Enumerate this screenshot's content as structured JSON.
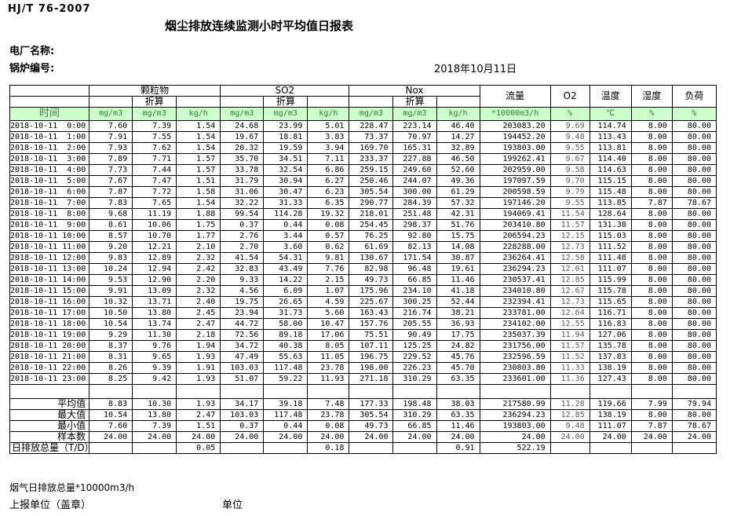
{
  "colors": {
    "header_green_bg": "#ccffcc",
    "header_green_text": "#2f7d32",
    "border": "#000000",
    "background": "#ffffff"
  },
  "page": {
    "standard": "HJ/T 76-2007",
    "title": "烟尘排放连续监测小时平均值日报表",
    "plant_label": "电厂名称:",
    "boiler_label": "锅炉编号:",
    "date": "2018年10月11日"
  },
  "table": {
    "time_header": "时间",
    "groups": [
      "颗粒物",
      "SO2",
      "Nox"
    ],
    "subheader": "折算",
    "single_headers": [
      "流量",
      "O2",
      "温度",
      "湿度",
      "负荷"
    ],
    "units": [
      "mg/m3",
      "mg/m3",
      "kg/h",
      "mg/m3",
      "mg/m3",
      "kg/h",
      "mg/m3",
      "mg/m3",
      "kg/h",
      "*10000m3/h",
      "%",
      "℃",
      "%",
      "%"
    ],
    "rows": [
      {
        "time": "2018-10-11  0:00",
        "values": [
          "7.60",
          "7.39",
          "1.54",
          "24.68",
          "23.99",
          "5.01",
          "228.47",
          "223.14",
          "46.40",
          "203083.20",
          "9.69",
          "114.74",
          "8.00",
          "80.00"
        ]
      },
      {
        "time": "2018-10-11  1:00",
        "values": [
          "7.91",
          "7.55",
          "1.54",
          "19.67",
          "18.81",
          "3.83",
          "73.37",
          "70.97",
          "14.27",
          "194452.20",
          "9.48",
          "113.43",
          "8.00",
          "80.00"
        ]
      },
      {
        "time": "2018-10-11  2:00",
        "values": [
          "7.93",
          "7.62",
          "1.54",
          "20.32",
          "19.59",
          "3.94",
          "169.70",
          "165.31",
          "32.89",
          "193803.00",
          "9.55",
          "113.81",
          "8.00",
          "80.00"
        ]
      },
      {
        "time": "2018-10-11  3:00",
        "values": [
          "7.89",
          "7.71",
          "1.57",
          "35.70",
          "34.51",
          "7.11",
          "233.37",
          "227.88",
          "46.50",
          "199262.41",
          "9.67",
          "114.40",
          "8.00",
          "80.00"
        ]
      },
      {
        "time": "2018-10-11  4:00",
        "values": [
          "7.73",
          "7.44",
          "1.57",
          "33.78",
          "32.54",
          "6.86",
          "259.15",
          "249.60",
          "52.60",
          "202959.00",
          "9.58",
          "114.63",
          "8.00",
          "80.00"
        ]
      },
      {
        "time": "2018-10-11  5:00",
        "values": [
          "7.67",
          "7.47",
          "1.51",
          "31.79",
          "30.94",
          "6.27",
          "250.46",
          "244.07",
          "49.36",
          "197097.59",
          "9.70",
          "115.15",
          "8.00",
          "80.00"
        ]
      },
      {
        "time": "2018-10-11  6:00",
        "values": [
          "7.87",
          "7.72",
          "1.58",
          "31.06",
          "30.47",
          "6.23",
          "305.54",
          "300.00",
          "61.29",
          "200598.59",
          "9.79",
          "115.48",
          "8.00",
          "80.00"
        ]
      },
      {
        "time": "2018-10-11  7:00",
        "values": [
          "7.83",
          "7.65",
          "1.54",
          "32.22",
          "31.33",
          "6.35",
          "290.77",
          "284.39",
          "57.32",
          "197146.20",
          "9.55",
          "113.85",
          "7.87",
          "78.67"
        ]
      },
      {
        "time": "2018-10-11  8:00",
        "values": [
          "9.68",
          "11.19",
          "1.88",
          "99.54",
          "114.28",
          "19.32",
          "218.01",
          "251.48",
          "42.31",
          "194069.41",
          "11.54",
          "128.64",
          "8.00",
          "80.00"
        ]
      },
      {
        "time": "2018-10-11  9:00",
        "values": [
          "8.61",
          "10.06",
          "1.75",
          "0.37",
          "0.44",
          "0.08",
          "254.45",
          "298.37",
          "51.76",
          "203410.80",
          "11.57",
          "131.38",
          "8.00",
          "80.00"
        ]
      },
      {
        "time": "2018-10-11 10:00",
        "values": [
          "8.57",
          "10.70",
          "1.77",
          "2.76",
          "3.44",
          "0.57",
          "76.25",
          "92.80",
          "15.75",
          "206594.23",
          "12.15",
          "115.03",
          "8.00",
          "80.00"
        ]
      },
      {
        "time": "2018-10-11 11:00",
        "values": [
          "9.20",
          "12.21",
          "2.10",
          "2.70",
          "3.60",
          "0.62",
          "61.69",
          "82.13",
          "14.08",
          "228288.00",
          "12.73",
          "111.52",
          "8.00",
          "80.00"
        ]
      },
      {
        "time": "2018-10-11 12:00",
        "values": [
          "9.83",
          "12.89",
          "2.32",
          "41.54",
          "54.31",
          "9.81",
          "130.67",
          "171.54",
          "30.87",
          "236264.41",
          "12.58",
          "111.48",
          "8.00",
          "80.00"
        ]
      },
      {
        "time": "2018-10-11 13:00",
        "values": [
          "10.24",
          "12.94",
          "2.42",
          "32.83",
          "43.49",
          "7.76",
          "82.98",
          "96.48",
          "19.61",
          "236294.23",
          "12.01",
          "111.07",
          "8.00",
          "80.00"
        ]
      },
      {
        "time": "2018-10-11 14:00",
        "values": [
          "9.53",
          "12.90",
          "2.20",
          "9.33",
          "14.22",
          "2.15",
          "49.73",
          "66.85",
          "11.46",
          "230537.41",
          "12.85",
          "115.99",
          "8.00",
          "80.00"
        ]
      },
      {
        "time": "2018-10-11 15:00",
        "values": [
          "9.91",
          "13.09",
          "2.32",
          "4.56",
          "6.09",
          "1.07",
          "175.96",
          "234.10",
          "41.18",
          "234010.80",
          "12.67",
          "115.78",
          "8.00",
          "80.00"
        ]
      },
      {
        "time": "2018-10-11 16:00",
        "values": [
          "10.32",
          "13.71",
          "2.40",
          "19.75",
          "26.65",
          "4.59",
          "225.67",
          "300.25",
          "52.44",
          "232394.41",
          "12.73",
          "115.65",
          "8.00",
          "80.00"
        ]
      },
      {
        "time": "2018-10-11 17:00",
        "values": [
          "10.50",
          "13.80",
          "2.45",
          "23.94",
          "31.73",
          "5.60",
          "163.43",
          "216.74",
          "38.21",
          "233781.00",
          "12.64",
          "116.71",
          "8.00",
          "80.00"
        ]
      },
      {
        "time": "2018-10-11 18:00",
        "values": [
          "10.54",
          "13.74",
          "2.47",
          "44.72",
          "58.00",
          "10.47",
          "157.76",
          "205.55",
          "36.93",
          "234102.00",
          "12.55",
          "116.83",
          "8.00",
          "80.00"
        ]
      },
      {
        "time": "2018-10-11 19:00",
        "values": [
          "9.29",
          "11.30",
          "2.18",
          "72.56",
          "89.18",
          "17.06",
          "75.51",
          "90.49",
          "17.75",
          "235037.39",
          "11.94",
          "127.06",
          "8.00",
          "80.00"
        ]
      },
      {
        "time": "2018-10-11 20:00",
        "values": [
          "8.37",
          "9.76",
          "1.94",
          "34.72",
          "40.38",
          "8.05",
          "107.11",
          "125.25",
          "24.82",
          "231756.00",
          "11.57",
          "135.78",
          "8.00",
          "80.00"
        ]
      },
      {
        "time": "2018-10-11 21:00",
        "values": [
          "8.31",
          "9.65",
          "1.93",
          "47.49",
          "55.63",
          "11.05",
          "196.75",
          "229.52",
          "45.76",
          "232596.59",
          "11.52",
          "137.83",
          "8.00",
          "80.00"
        ]
      },
      {
        "time": "2018-10-11 22:00",
        "values": [
          "8.26",
          "9.39",
          "1.91",
          "103.03",
          "117.48",
          "23.78",
          "198.00",
          "226.23",
          "45.70",
          "230803.80",
          "11.33",
          "138.19",
          "8.00",
          "80.00"
        ]
      },
      {
        "time": "2018-10-11 23:00",
        "values": [
          "8.25",
          "9.42",
          "1.93",
          "51.07",
          "59.22",
          "11.93",
          "271.18",
          "310.29",
          "63.35",
          "233601.00",
          "11.36",
          "127.43",
          "8.00",
          "80.00"
        ]
      }
    ],
    "summary": [
      {
        "label": "平均值",
        "values": [
          "8.83",
          "10.30",
          "1.93",
          "34.17",
          "39.18",
          "7.48",
          "177.33",
          "198.48",
          "38.03",
          "217580.99",
          "11.28",
          "119.66",
          "7.99",
          "79.94"
        ]
      },
      {
        "label": "最大值",
        "values": [
          "10.54",
          "13.80",
          "2.47",
          "103.03",
          "117.48",
          "23.78",
          "305.54",
          "310.29",
          "63.35",
          "236294.23",
          "12.85",
          "138.19",
          "8.00",
          "80.00"
        ]
      },
      {
        "label": "最小值",
        "values": [
          "7.60",
          "7.39",
          "1.51",
          "0.37",
          "0.44",
          "0.08",
          "49.73",
          "66.85",
          "11.46",
          "193803.00",
          "9.48",
          "111.07",
          "7.87",
          "78.67"
        ]
      },
      {
        "label": "样本数",
        "values": [
          "24.00",
          "24.00",
          "24.00",
          "24.00",
          "24.00",
          "24.00",
          "24.00",
          "24.00",
          "24.00",
          "24.00",
          "24.00",
          "24.00",
          "24.00",
          "24.00"
        ]
      }
    ],
    "total_row": {
      "label": "日排放总量（T/D）",
      "values": [
        "",
        "",
        "0.05",
        "",
        "",
        "0.18",
        "",
        "",
        "0.91",
        "522.19",
        "",
        "",
        "",
        ""
      ]
    }
  },
  "footer": {
    "flue_total_label": "烟气日排放总量*10000m3/h",
    "report_unit_label": "上报单位（盖章）",
    "unit_label": "单位"
  }
}
